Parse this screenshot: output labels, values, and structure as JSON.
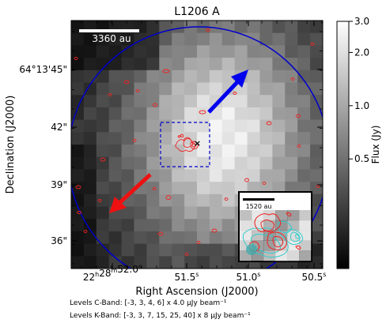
{
  "chart_data": {
    "type": "heatmap",
    "title": "L1206 A",
    "xlabel": "Right Ascension (J2000)",
    "ylabel": "Declination (J2000)",
    "x_ticks": [
      {
        "main": "22",
        "s1": "h",
        "mid": "28",
        "s2": "m",
        "val": "52.0",
        "s3": "s"
      },
      {
        "main": "",
        "s1": "",
        "mid": "",
        "s2": "",
        "val": "51.5",
        "s3": "s"
      },
      {
        "main": "",
        "s1": "",
        "mid": "",
        "s2": "",
        "val": "51.0",
        "s3": "s"
      },
      {
        "main": "",
        "s1": "",
        "mid": "",
        "s2": "",
        "val": "50.5",
        "s3": "s"
      }
    ],
    "y_ticks": [
      "64°13'45\"",
      "42\"",
      "39\"",
      "36\""
    ],
    "colorbar": {
      "label": "Flux (Jy)",
      "scale": "log",
      "ticks": [
        "3.0",
        "2.0",
        "1.0",
        "0.5"
      ],
      "colormap": "gray"
    },
    "scalebar_label": "3360 au",
    "inset_scalebar_label": "1520 au",
    "source_marker": "×",
    "levels_c": "Levels C-Band: [-3, 3, 4, 6] x 4.0 μJy beam⁻¹",
    "levels_k": "Levels K-Band: [-3, 3, 7, 15, 25, 40] x 8 μJy beam⁻¹",
    "colors": {
      "beam_circle": "#0000cc",
      "outflow_blue": "#0000ee",
      "outflow_red": "#ee1111",
      "contour_c": "#ee2222",
      "contour_k": "#33cccc",
      "inset_box": "#0000cc"
    }
  }
}
